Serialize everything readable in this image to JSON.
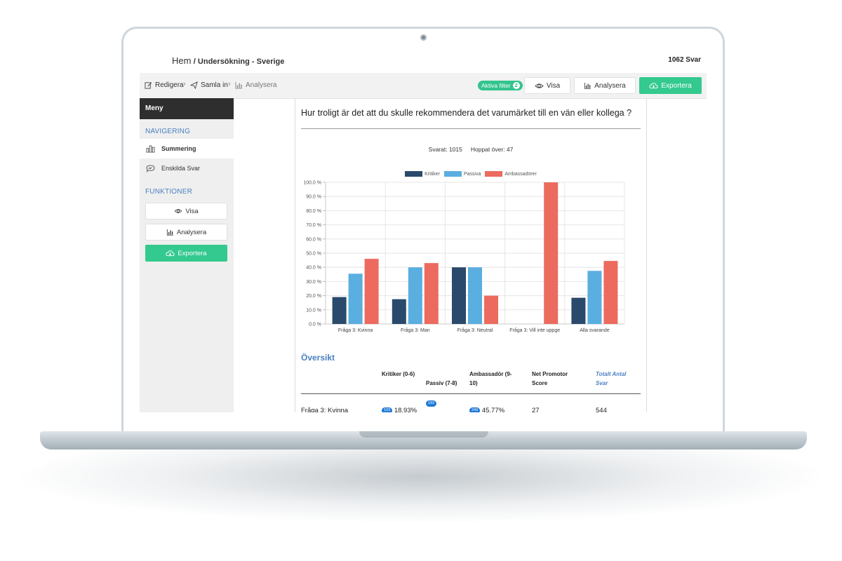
{
  "header": {
    "home": "Hem",
    "breadcrumb": "/ Undersökning - Sverige",
    "response_count": "1062 Svar"
  },
  "toolbar": {
    "steps": [
      {
        "label": "Redigera",
        "icon": "edit-icon"
      },
      {
        "label": "Samla in",
        "icon": "send-icon"
      },
      {
        "label": "Analysera",
        "icon": "bar-chart-icon"
      }
    ],
    "active_filter_label": "Aktiva filter",
    "active_filter_count": "2",
    "view_label": "Visa",
    "analyze_label": "Analysera",
    "export_label": "Exportera"
  },
  "sidebar": {
    "menu_title": "Meny",
    "nav_title": "NAVIGERING",
    "nav_items": [
      {
        "label": "Summering",
        "icon": "bar-chart-icon",
        "active": true
      },
      {
        "label": "Enskilda Svar",
        "icon": "chat-bubble-icon",
        "active": false
      }
    ],
    "functions_title": "FUNKTIONER",
    "view_label": "Visa",
    "analyze_label": "Analysera",
    "export_label": "Exportera"
  },
  "main": {
    "question": "Hur troligt är det att du skulle rekommendera det varumärket till en vän eller kollega ?",
    "answered": "Svarat: 1015",
    "skipped": "Hoppat över: 47",
    "overview_title": "Översikt",
    "table": {
      "headers": {
        "critic": "Kritiker (0-6)",
        "passive": "Passiv (7-8)",
        "ambassador": "Ambassadör (9-10)",
        "nps": "Net Promotor Score",
        "total": "Totalt Antal Svar"
      },
      "rows": [
        {
          "label": "Fråga 3: Kvinna",
          "critic_count": "103",
          "critic_pct": "18,93%",
          "passive_count": "192",
          "ambassador_count": "249",
          "ambassador_pct": "45,77%",
          "nps": "27",
          "total": "544"
        }
      ]
    }
  },
  "colors": {
    "critic": "#2a4a6b",
    "passive": "#5aaee0",
    "ambassador": "#ec6b5e",
    "accent_green": "#33c98f",
    "link_blue": "#4a7fc1"
  },
  "chart_data": {
    "type": "bar",
    "categories": [
      "Fråga 3: Kvinna",
      "Fråga 3: Man",
      "Fråga 3: Neutral",
      "Fråga 3: Vill inte uppge",
      "Alla svarande"
    ],
    "series": [
      {
        "name": "Kritiker",
        "values": [
          19,
          17.5,
          40,
          0,
          18.5
        ]
      },
      {
        "name": "Passiva",
        "values": [
          35.5,
          40,
          40,
          0,
          37.5
        ]
      },
      {
        "name": "Ambassadörer",
        "values": [
          46,
          43,
          20,
          100,
          44.5
        ]
      }
    ],
    "yticks": [
      "0.0 %",
      "10.0 %",
      "20.0 %",
      "30.0 %",
      "40.0 %",
      "50.0 %",
      "60.0 %",
      "70.0 %",
      "80.0 %",
      "90.0 %",
      "100.0 %"
    ],
    "ylim": [
      0,
      100
    ],
    "legend": "top",
    "grid": true
  }
}
